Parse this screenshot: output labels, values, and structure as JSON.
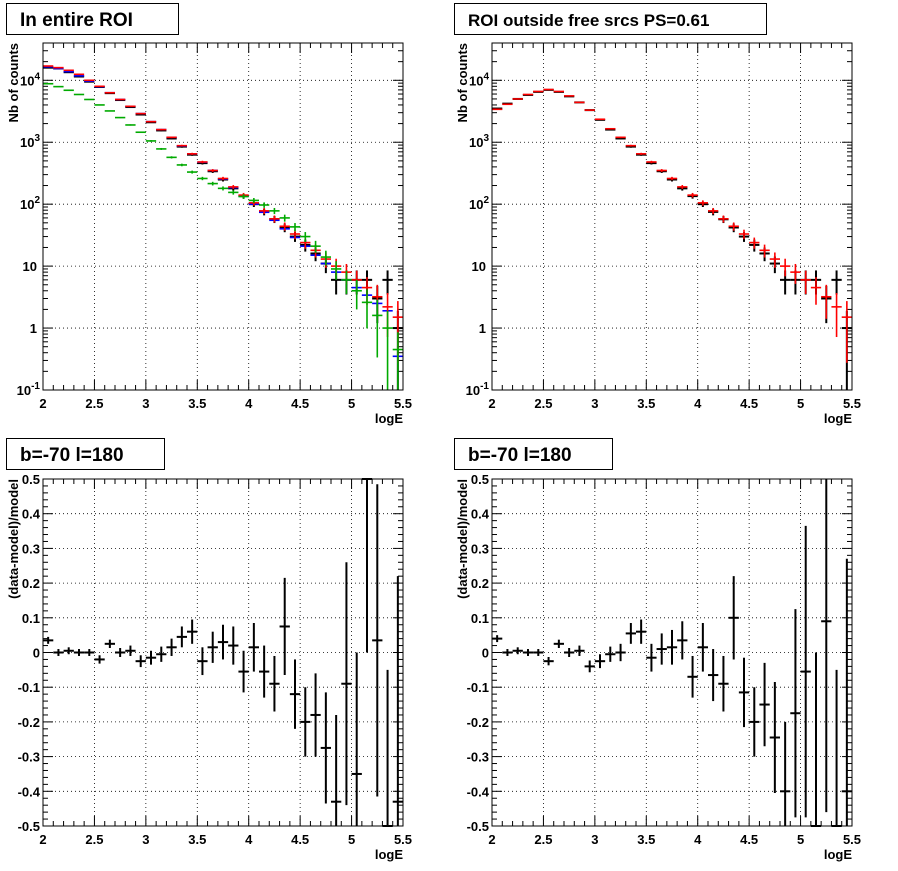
{
  "panels": [
    {
      "title": "In entire ROI",
      "xlabel": "logE",
      "ylabel": "Nb of counts",
      "chart_data": {
        "type": "scatter",
        "log_y": true,
        "xlim": [
          2,
          5.5
        ],
        "ylim": [
          0.1,
          40000
        ],
        "bin_width": 0.1,
        "x_ticks": [
          "2",
          "2.5",
          "3",
          "3.5",
          "4",
          "4.5",
          "5",
          "5.5"
        ],
        "y_ticks": [
          "10^-1",
          "1",
          "10",
          "10^2",
          "10^3",
          "10^4"
        ],
        "grid": true,
        "series": [
          {
            "color": "#000000",
            "style": "errorbar",
            "x": [
              2.05,
              2.15,
              2.25,
              2.35,
              2.45,
              2.55,
              2.65,
              2.75,
              2.85,
              2.95,
              3.05,
              3.15,
              3.25,
              3.35,
              3.45,
              3.55,
              3.65,
              3.75,
              3.85,
              3.95,
              4.05,
              4.15,
              4.25,
              4.35,
              4.45,
              4.55,
              4.65,
              4.75,
              4.85,
              4.95,
              5.05,
              5.15,
              5.25,
              5.35,
              5.45
            ],
            "y": [
              16000,
              15500,
              13500,
              11500,
              9500,
              7800,
              6200,
              4800,
              3700,
              2800,
              2100,
              1550,
              1150,
              850,
              630,
              460,
              340,
              250,
              180,
              135,
              100,
              75,
              57,
              42,
              30,
              22,
              16,
              11,
              6,
              6,
              6,
              6,
              3,
              6,
              1
            ],
            "yerr_rel": [
              0.01,
              0.01,
              0.01,
              0.01,
              0.01,
              0.01,
              0.01,
              0.01,
              0.02,
              0.02,
              0.02,
              0.03,
              0.03,
              0.04,
              0.04,
              0.05,
              0.06,
              0.07,
              0.08,
              0.09,
              0.1,
              0.12,
              0.13,
              0.16,
              0.18,
              0.22,
              0.25,
              0.3,
              0.42,
              0.42,
              0.42,
              0.42,
              0.6,
              0.42,
              0.9
            ]
          },
          {
            "color": "#0000ff",
            "style": "line",
            "y": [
              16500,
              15500,
              13800,
              11800,
              9700,
              7900,
              6300,
              4900,
              3800,
              2900,
              2150,
              1600,
              1200,
              870,
              650,
              475,
              350,
              255,
              185,
              135,
              100,
              74,
              55,
              40,
              29,
              21,
              15,
              11,
              8,
              6,
              4.5,
              3.4,
              2.5,
              1.9,
              0.35
            ]
          },
          {
            "color": "#ff0000",
            "style": "errorbar",
            "y": [
              17000,
              16000,
              14500,
              12500,
              10000,
              8000,
              6300,
              4900,
              3800,
              2900,
              2150,
              1600,
              1200,
              880,
              650,
              480,
              350,
              260,
              190,
              140,
              105,
              78,
              58,
              44,
              33,
              24,
              18,
              13,
              10,
              8,
              6,
              4.5,
              3.2,
              2.2,
              1.5
            ]
          },
          {
            "color": "#00aa00",
            "style": "errorbar",
            "y": [
              8800,
              7900,
              6900,
              5900,
              4900,
              4000,
              3200,
              2500,
              1900,
              1450,
              1050,
              780,
              570,
              430,
              330,
              260,
              215,
              180,
              155,
              133,
              115,
              97,
              78,
              60,
              43,
              30,
              21,
              14,
              9,
              6,
              4,
              2.6,
              1.6,
              1.0,
              0.45
            ]
          }
        ]
      }
    },
    {
      "title": "ROI outside free srcs PS=0.61",
      "xlabel": "logE",
      "ylabel": "Nb of counts",
      "chart_data": {
        "type": "scatter",
        "log_y": true,
        "xlim": [
          2,
          5.5
        ],
        "ylim": [
          0.1,
          40000
        ],
        "bin_width": 0.1,
        "x_ticks": [
          "2",
          "2.5",
          "3",
          "3.5",
          "4",
          "4.5",
          "5",
          "5.5"
        ],
        "y_ticks": [
          "10^-1",
          "1",
          "10",
          "10^2",
          "10^3",
          "10^4"
        ],
        "grid": true,
        "series": [
          {
            "color": "#000000",
            "style": "errorbar",
            "x": [
              2.05,
              2.15,
              2.25,
              2.35,
              2.45,
              2.55,
              2.65,
              2.75,
              2.85,
              2.95,
              3.05,
              3.15,
              3.25,
              3.35,
              3.45,
              3.55,
              3.65,
              3.75,
              3.85,
              3.95,
              4.05,
              4.15,
              4.25,
              4.35,
              4.45,
              4.55,
              4.65,
              4.75,
              4.85,
              4.95,
              5.05,
              5.15,
              5.25,
              5.35,
              5.45
            ],
            "y": [
              3500,
              4200,
              5000,
              5800,
              6500,
              7000,
              6500,
              5500,
              4400,
              3300,
              2300,
              1600,
              1150,
              850,
              630,
              460,
              340,
              250,
              180,
              135,
              100,
              75,
              57,
              42,
              30,
              22,
              16,
              11,
              6,
              6,
              6,
              6,
              3,
              6,
              1
            ],
            "yerr_rel": [
              0.02,
              0.02,
              0.01,
              0.01,
              0.01,
              0.01,
              0.01,
              0.01,
              0.02,
              0.02,
              0.02,
              0.03,
              0.03,
              0.04,
              0.04,
              0.05,
              0.06,
              0.07,
              0.08,
              0.09,
              0.1,
              0.12,
              0.13,
              0.16,
              0.18,
              0.22,
              0.25,
              0.3,
              0.42,
              0.42,
              0.42,
              0.42,
              0.6,
              0.42,
              0.9
            ]
          },
          {
            "color": "#ff0000",
            "style": "errorbar",
            "y": [
              3400,
              4100,
              5000,
              5900,
              6600,
              7100,
              6600,
              5600,
              4400,
              3300,
              2350,
              1650,
              1200,
              880,
              650,
              480,
              350,
              260,
              190,
              140,
              105,
              78,
              58,
              44,
              33,
              24,
              18,
              13,
              10,
              8,
              6,
              4.5,
              3.2,
              2.2,
              1.5
            ]
          }
        ]
      }
    },
    {
      "title": "b=-70 l=180",
      "xlabel": "logE",
      "ylabel": "(data-model)/model",
      "chart_data": {
        "type": "scatter",
        "xlim": [
          2,
          5.5
        ],
        "ylim": [
          -0.5,
          0.5
        ],
        "bin_width": 0.1,
        "x_ticks": [
          "2",
          "2.5",
          "3",
          "3.5",
          "4",
          "4.5",
          "5",
          "5.5"
        ],
        "y_ticks": [
          "-0.5",
          "-0.4",
          "-0.3",
          "-0.2",
          "-0.1",
          "0",
          "0.1",
          "0.2",
          "0.3",
          "0.4",
          "0.5"
        ],
        "grid": true,
        "series": [
          {
            "color": "#000000",
            "style": "errorbar",
            "x": [
              2.05,
              2.15,
              2.25,
              2.35,
              2.45,
              2.55,
              2.65,
              2.75,
              2.85,
              2.95,
              3.05,
              3.15,
              3.25,
              3.35,
              3.45,
              3.55,
              3.65,
              3.75,
              3.85,
              3.95,
              4.05,
              4.15,
              4.25,
              4.35,
              4.45,
              4.55,
              4.65,
              4.75,
              4.85,
              4.95,
              5.05,
              5.15,
              5.25,
              5.35,
              5.45
            ],
            "y": [
              0.035,
              0,
              0.005,
              0,
              0,
              -0.02,
              0.025,
              0,
              0.005,
              -0.025,
              -0.015,
              -0.005,
              0.015,
              0.045,
              0.06,
              -0.025,
              0.015,
              0.03,
              0.02,
              -0.055,
              0.015,
              -0.055,
              -0.09,
              0.075,
              -0.12,
              -0.2,
              -0.18,
              -0.275,
              -0.43,
              -0.09,
              -0.35,
              0.5,
              0.035,
              -0.5,
              -0.43
            ],
            "yerr": [
              0.01,
              0.01,
              0.01,
              0.01,
              0.01,
              0.012,
              0.012,
              0.013,
              0.015,
              0.017,
              0.02,
              0.022,
              0.025,
              0.03,
              0.035,
              0.04,
              0.045,
              0.05,
              0.055,
              0.06,
              0.07,
              0.075,
              0.08,
              0.14,
              0.1,
              0.1,
              0.12,
              0.16,
              0.25,
              0.35,
              0.35,
              0.5,
              0.45,
              0.45,
              0.65
            ]
          }
        ]
      }
    },
    {
      "title": "b=-70 l=180",
      "xlabel": "logE",
      "ylabel": "(data-model)/model",
      "chart_data": {
        "type": "scatter",
        "xlim": [
          2,
          5.5
        ],
        "ylim": [
          -0.5,
          0.5
        ],
        "bin_width": 0.1,
        "x_ticks": [
          "2",
          "2.5",
          "3",
          "3.5",
          "4",
          "4.5",
          "5",
          "5.5"
        ],
        "y_ticks": [
          "-0.5",
          "-0.4",
          "-0.3",
          "-0.2",
          "-0.1",
          "0",
          "0.1",
          "0.2",
          "0.3",
          "0.4",
          "0.5"
        ],
        "grid": true,
        "series": [
          {
            "color": "#000000",
            "style": "errorbar",
            "x": [
              2.05,
              2.15,
              2.25,
              2.35,
              2.45,
              2.55,
              2.65,
              2.75,
              2.85,
              2.95,
              3.05,
              3.15,
              3.25,
              3.35,
              3.45,
              3.55,
              3.65,
              3.75,
              3.85,
              3.95,
              4.05,
              4.15,
              4.25,
              4.35,
              4.45,
              4.55,
              4.65,
              4.75,
              4.85,
              4.95,
              5.05,
              5.15,
              5.25,
              5.35,
              5.45
            ],
            "y": [
              0.04,
              0,
              0.005,
              0,
              0,
              -0.025,
              0.025,
              0,
              0.005,
              -0.04,
              -0.025,
              -0.005,
              0,
              0.055,
              0.06,
              -0.015,
              0.01,
              0.015,
              0.035,
              -0.07,
              0.015,
              -0.065,
              -0.09,
              0.1,
              -0.115,
              -0.2,
              -0.15,
              -0.245,
              -0.4,
              -0.175,
              -0.055,
              -0.5,
              0.09,
              -0.5,
              -0.4
            ],
            "yerr": [
              0.01,
              0.01,
              0.01,
              0.01,
              0.01,
              0.012,
              0.012,
              0.013,
              0.015,
              0.017,
              0.02,
              0.022,
              0.025,
              0.03,
              0.035,
              0.04,
              0.045,
              0.05,
              0.055,
              0.06,
              0.07,
              0.075,
              0.08,
              0.12,
              0.1,
              0.1,
              0.12,
              0.16,
              0.2,
              0.3,
              0.42,
              0.5,
              0.55,
              0.45,
              0.67
            ]
          }
        ]
      }
    }
  ]
}
